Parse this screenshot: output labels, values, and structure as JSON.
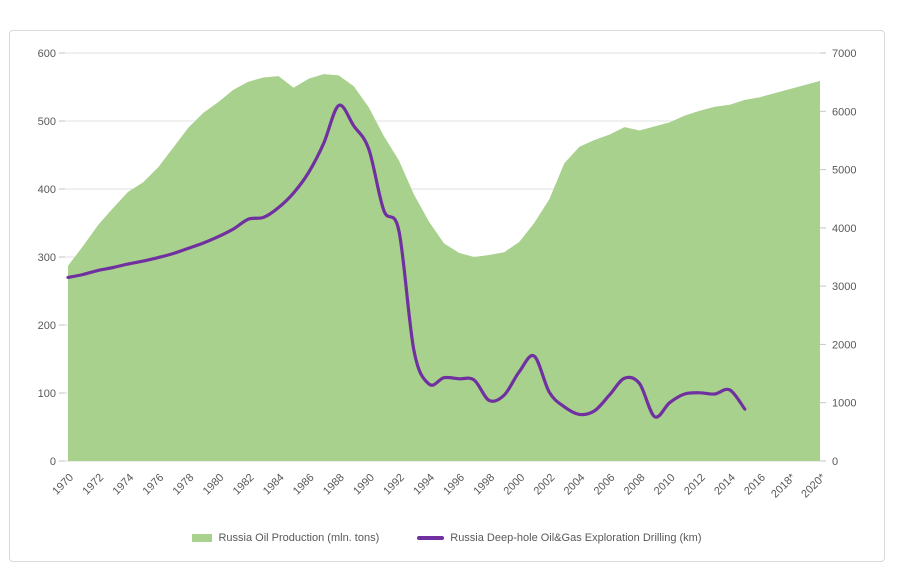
{
  "chart_data": {
    "type": "area-line-combo",
    "title": "",
    "x_start_year": 1970,
    "x_tick_labels": [
      "1970",
      "1972",
      "1974",
      "1976",
      "1978",
      "1980",
      "1982",
      "1984",
      "1986",
      "1988",
      "1990",
      "1992",
      "1994",
      "1996",
      "1998",
      "2000",
      "2002",
      "2004",
      "2006",
      "2008",
      "2010",
      "2012",
      "2014",
      "2016",
      "2018*",
      "2020*"
    ],
    "series": [
      {
        "name": "Russia Oil Production (mln. tons)",
        "type": "area",
        "axis": "left",
        "color": "#a9d18e",
        "start_year": 1970,
        "values": [
          287,
          316,
          347,
          372,
          396,
          410,
          432,
          461,
          490,
          512,
          528,
          546,
          558,
          564,
          566,
          549,
          562,
          569,
          567,
          551,
          520,
          478,
          442,
          392,
          352,
          320,
          306,
          300,
          303,
          307,
          322,
          350,
          385,
          438,
          462,
          472,
          480,
          491,
          486,
          492,
          498,
          508,
          515,
          521,
          524,
          531,
          535,
          541,
          547,
          553,
          559
        ]
      },
      {
        "name": "Russia Deep-hole Oil&Gas Exploration Drilling (km)",
        "type": "line",
        "axis": "right",
        "color": "#7030a0",
        "start_year": 1970,
        "values": [
          3150,
          3200,
          3270,
          3320,
          3380,
          3430,
          3490,
          3560,
          3650,
          3740,
          3850,
          3980,
          4150,
          4180,
          4350,
          4600,
          4950,
          5450,
          6100,
          5750,
          5350,
          4300,
          3950,
          1900,
          1320,
          1430,
          1410,
          1390,
          1040,
          1130,
          1530,
          1800,
          1180,
          930,
          800,
          860,
          1130,
          1420,
          1330,
          760,
          1000,
          1150,
          1170,
          1150,
          1220,
          890
        ]
      }
    ],
    "left_axis": {
      "min": 0,
      "max": 600,
      "step": 100,
      "ticks": [
        "0",
        "100",
        "200",
        "300",
        "400",
        "500",
        "600"
      ]
    },
    "right_axis": {
      "min": 0,
      "max": 7000,
      "step": 1000,
      "ticks": [
        "0",
        "1000",
        "2000",
        "3000",
        "4000",
        "5000",
        "6000",
        "7000"
      ]
    },
    "grid": true,
    "legend_position": "bottom"
  },
  "colors": {
    "area_fill": "#a9d18e",
    "line_stroke": "#7030a0",
    "gridline": "#e2e2e2",
    "tick_mark": "#c6c6c6",
    "axis_text": "#595959",
    "card_border": "#d9d9d9"
  }
}
